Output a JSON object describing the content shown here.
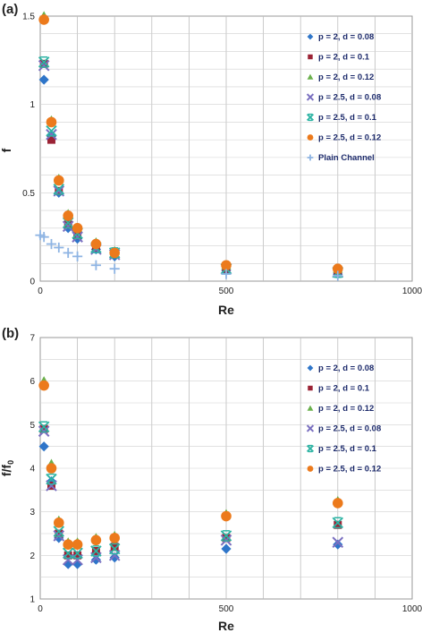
{
  "chart_data": [
    {
      "type": "scatter",
      "panel_label": "(a)",
      "xlabel": "Re",
      "ylabel": "f",
      "xlim": [
        0,
        1000
      ],
      "ylim": [
        0,
        1.5
      ],
      "xticks": [
        0,
        500,
        1000
      ],
      "yticks": [
        0,
        0.5,
        1,
        1.5
      ],
      "grid": true,
      "legend_position": "top-right",
      "series": [
        {
          "name": "p = 2, d = 0.08",
          "marker": "diamond",
          "color": "#2e75c9",
          "x": [
            10,
            30,
            50,
            75,
            100,
            150,
            200,
            500,
            800
          ],
          "y": [
            1.14,
            0.82,
            0.5,
            0.3,
            0.24,
            0.18,
            0.14,
            0.06,
            0.04
          ]
        },
        {
          "name": "p = 2, d = 0.1",
          "marker": "square",
          "color": "#9b2335",
          "x": [
            10,
            30,
            50,
            75,
            100,
            150,
            200,
            500,
            800
          ],
          "y": [
            1.23,
            0.8,
            0.51,
            0.32,
            0.26,
            0.19,
            0.15,
            0.07,
            0.05
          ]
        },
        {
          "name": "p = 2, d = 0.12",
          "marker": "triangle",
          "color": "#6ab04c",
          "x": [
            10,
            30,
            50,
            75,
            100,
            150,
            200,
            500,
            800
          ],
          "y": [
            1.5,
            0.91,
            0.58,
            0.38,
            0.3,
            0.22,
            0.17,
            0.09,
            0.07
          ]
        },
        {
          "name": "p = 2.5, d = 0.08",
          "marker": "x",
          "color": "#7a6fc0",
          "x": [
            10,
            30,
            50,
            75,
            100,
            150,
            200,
            500,
            800
          ],
          "y": [
            1.22,
            0.83,
            0.51,
            0.31,
            0.25,
            0.18,
            0.15,
            0.07,
            0.05
          ]
        },
        {
          "name": "p = 2.5, d = 0.1",
          "marker": "star",
          "color": "#2bb3a3",
          "x": [
            10,
            30,
            50,
            75,
            100,
            150,
            200,
            500,
            800
          ],
          "y": [
            1.24,
            0.85,
            0.52,
            0.33,
            0.27,
            0.19,
            0.16,
            0.07,
            0.05
          ]
        },
        {
          "name": "p = 2.5, d = 0.12",
          "marker": "circle",
          "color": "#ec7a1c",
          "x": [
            10,
            30,
            50,
            75,
            100,
            150,
            200,
            500,
            800
          ],
          "y": [
            1.48,
            0.9,
            0.57,
            0.37,
            0.3,
            0.21,
            0.16,
            0.09,
            0.07
          ]
        },
        {
          "name": "Plain Channel",
          "marker": "plus",
          "color": "#8eb4e3",
          "x": [
            0,
            10,
            30,
            50,
            75,
            100,
            150,
            200,
            500,
            800
          ],
          "y": [
            0.26,
            0.25,
            0.21,
            0.19,
            0.16,
            0.14,
            0.09,
            0.07,
            0.04,
            0.03
          ]
        }
      ]
    },
    {
      "type": "scatter",
      "panel_label": "(b)",
      "xlabel": "Re",
      "ylabel": "f/f",
      "ylabel_sub": "0",
      "xlim": [
        0,
        1000
      ],
      "ylim": [
        1,
        7
      ],
      "xticks": [
        0,
        500,
        1000
      ],
      "yticks": [
        1,
        2,
        3,
        4,
        5,
        6,
        7
      ],
      "grid": true,
      "legend_position": "top-right",
      "series": [
        {
          "name": "p = 2, d = 0.08",
          "marker": "diamond",
          "color": "#2e75c9",
          "x": [
            10,
            30,
            50,
            75,
            100,
            150,
            200,
            500,
            800
          ],
          "y": [
            4.5,
            3.7,
            2.4,
            1.8,
            1.8,
            1.9,
            1.95,
            2.15,
            2.25
          ]
        },
        {
          "name": "p = 2, d = 0.1",
          "marker": "square",
          "color": "#9b2335",
          "x": [
            10,
            30,
            50,
            75,
            100,
            150,
            200,
            500,
            800
          ],
          "y": [
            4.9,
            3.6,
            2.5,
            2.0,
            2.0,
            2.1,
            2.2,
            2.4,
            2.7
          ]
        },
        {
          "name": "p = 2, d = 0.12",
          "marker": "triangle",
          "color": "#6ab04c",
          "x": [
            10,
            30,
            50,
            75,
            100,
            150,
            200,
            500,
            800
          ],
          "y": [
            6.0,
            4.1,
            2.8,
            2.3,
            2.3,
            2.4,
            2.45,
            2.95,
            3.25
          ]
        },
        {
          "name": "p = 2.5, d = 0.08",
          "marker": "x",
          "color": "#7a6fc0",
          "x": [
            10,
            30,
            50,
            75,
            100,
            150,
            200,
            500,
            800
          ],
          "y": [
            4.85,
            3.6,
            2.45,
            1.9,
            1.9,
            1.95,
            2.0,
            2.35,
            2.3
          ]
        },
        {
          "name": "p = 2.5, d = 0.1",
          "marker": "star",
          "color": "#2bb3a3",
          "x": [
            10,
            30,
            50,
            75,
            100,
            150,
            200,
            500,
            800
          ],
          "y": [
            4.95,
            3.75,
            2.55,
            2.05,
            2.05,
            2.1,
            2.15,
            2.45,
            2.75
          ]
        },
        {
          "name": "p = 2.5, d = 0.12",
          "marker": "circle",
          "color": "#ec7a1c",
          "x": [
            10,
            30,
            50,
            75,
            100,
            150,
            200,
            500,
            800
          ],
          "y": [
            5.9,
            4.0,
            2.75,
            2.25,
            2.25,
            2.35,
            2.4,
            2.9,
            3.2
          ]
        }
      ]
    }
  ]
}
